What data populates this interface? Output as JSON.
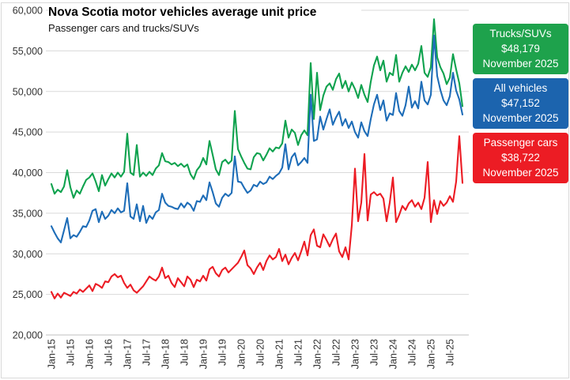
{
  "header": {
    "title": "Nova Scotia motor vehicles average unit price",
    "subtitle": "Passenger cars and trucks/SUVs"
  },
  "legend": [
    {
      "label": "Trucks/SUVs",
      "value": "$48,179",
      "date": "November 2025",
      "color": "#1ea24c"
    },
    {
      "label": "All vehicles",
      "value": "$47,152",
      "date": "November 2025",
      "color": "#1c64ae"
    },
    {
      "label": "Passenger cars",
      "value": "$38,722",
      "date": "November 2025",
      "color": "#ec1c24"
    }
  ],
  "chart_data": {
    "type": "line",
    "title": "Nova Scotia motor vehicles average unit price",
    "subtitle": "Passenger cars and trucks/SUVs",
    "x_unit": "month",
    "x_range": [
      "Jan-2015",
      "Nov-2025"
    ],
    "x_tick_labels": [
      "Jan-15",
      "Jul-15",
      "Jan-16",
      "Jul-16",
      "Jan-17",
      "Jul-17",
      "Jan-18",
      "Jul-18",
      "Jan-19",
      "Jul-19",
      "Jan-20",
      "Jul-20",
      "Jan-21",
      "Jul-21",
      "Jan-22",
      "Jul-22",
      "Jan-23",
      "Jul-23",
      "Jan-24",
      "Jul-24",
      "Jan-25",
      "Jul-25"
    ],
    "x_ticks_every_n_months": 6,
    "y_ticks": [
      20000,
      25000,
      30000,
      35000,
      40000,
      45000,
      50000,
      55000,
      60000
    ],
    "ylim": [
      20000,
      60000
    ],
    "grid": "horizontal",
    "legend_position": "right",
    "series": [
      {
        "name": "Trucks/SUVs",
        "color": "#0fa24e",
        "latest": {
          "label": "November 2025",
          "value": 48179
        },
        "values": [
          38600,
          37400,
          37900,
          37600,
          38300,
          40300,
          38200,
          36900,
          37800,
          37400,
          38300,
          39100,
          39400,
          39900,
          38900,
          37700,
          39700,
          38400,
          39200,
          39900,
          39400,
          40000,
          39500,
          40100,
          44800,
          40000,
          39700,
          43400,
          39500,
          40000,
          39600,
          40100,
          39700,
          40500,
          40900,
          42400,
          41400,
          41300,
          41000,
          41200,
          40800,
          41100,
          40700,
          41000,
          39800,
          39200,
          40300,
          40800,
          41800,
          41000,
          43900,
          42200,
          40400,
          39700,
          41300,
          41600,
          41100,
          41500,
          47600,
          42900,
          42000,
          41200,
          40500,
          40400,
          41900,
          42400,
          42300,
          41500,
          42200,
          43000,
          42600,
          43100,
          43000,
          43600,
          46400,
          44300,
          45300,
          44900,
          43400,
          44600,
          45200,
          44600,
          53500,
          46600,
          52300,
          47700,
          49500,
          50600,
          51000,
          50200,
          51500,
          52200,
          50400,
          51300,
          50000,
          51100,
          50300,
          49200,
          50800,
          49600,
          48700,
          51200,
          53200,
          54300,
          52600,
          53800,
          51200,
          52300,
          52000,
          54500,
          51200,
          52300,
          53100,
          52400,
          53300,
          52600,
          53400,
          55600,
          52300,
          51800,
          53000,
          58900,
          54200,
          53000,
          52200,
          50900,
          51700,
          54600,
          52700,
          51000,
          48179
        ]
      },
      {
        "name": "All vehicles",
        "color": "#1e6db8",
        "latest": {
          "label": "November 2025",
          "value": 47152
        },
        "values": [
          33400,
          32600,
          31900,
          31400,
          32900,
          34400,
          31900,
          32300,
          32100,
          32700,
          33400,
          33300,
          34100,
          35300,
          35500,
          33900,
          35200,
          34300,
          34700,
          35400,
          35000,
          35600,
          35100,
          35300,
          38700,
          34600,
          34300,
          36100,
          34000,
          35900,
          33800,
          34700,
          34300,
          35100,
          35400,
          37400,
          36300,
          35900,
          35800,
          35600,
          35500,
          36200,
          35700,
          36300,
          36000,
          35300,
          36500,
          36400,
          37200,
          36600,
          38800,
          37600,
          36200,
          35800,
          36900,
          37400,
          37100,
          37500,
          42000,
          38900,
          38800,
          38100,
          37500,
          37800,
          38500,
          38300,
          38900,
          38600,
          38800,
          39500,
          39200,
          39600,
          39900,
          40600,
          43500,
          40400,
          41900,
          42400,
          40900,
          41300,
          41800,
          41200,
          49600,
          43900,
          44100,
          46900,
          45300,
          46600,
          47800,
          45900,
          46800,
          47500,
          45800,
          46600,
          45500,
          46300,
          45000,
          44300,
          46200,
          45100,
          44500,
          46600,
          48400,
          49600,
          47700,
          48900,
          46400,
          47300,
          47100,
          49800,
          47600,
          47000,
          48300,
          50600,
          48000,
          48800,
          47900,
          51200,
          48900,
          48400,
          49600,
          56900,
          51900,
          50200,
          48900,
          48300,
          49400,
          52300,
          50100,
          49000,
          47152
        ]
      },
      {
        "name": "Passenger cars",
        "color": "#ec1c24",
        "latest": {
          "label": "November 2025",
          "value": 38722
        },
        "values": [
          25300,
          24500,
          25100,
          24600,
          25200,
          25000,
          24800,
          25300,
          25100,
          25600,
          25300,
          25700,
          26100,
          25400,
          26300,
          26100,
          25800,
          26600,
          26500,
          27200,
          27500,
          27100,
          27300,
          26400,
          25800,
          26200,
          25500,
          25200,
          25600,
          26000,
          26600,
          27200,
          26900,
          26700,
          27200,
          28300,
          27000,
          27300,
          26400,
          25900,
          27000,
          26500,
          26000,
          27200,
          26800,
          25900,
          26800,
          26600,
          27300,
          26700,
          28100,
          28400,
          27600,
          27200,
          28000,
          28300,
          27700,
          28100,
          28500,
          28900,
          29600,
          30400,
          28600,
          28200,
          27500,
          28300,
          28900,
          28000,
          29100,
          29800,
          29300,
          29600,
          30600,
          29100,
          29900,
          28700,
          29500,
          30100,
          29200,
          30300,
          31500,
          29800,
          32300,
          33000,
          31000,
          30800,
          32400,
          31700,
          30900,
          31800,
          32500,
          30300,
          29600,
          30800,
          29300,
          33500,
          40500,
          34000,
          36300,
          42300,
          34100,
          37300,
          37600,
          37200,
          37400,
          36800,
          34000,
          36300,
          39400,
          33900,
          34800,
          35900,
          35400,
          36200,
          36600,
          35800,
          36300,
          35500,
          36900,
          41300,
          33900,
          36600,
          34900,
          36500,
          35900,
          36300,
          37100,
          36400,
          38900,
          44500,
          38722
        ]
      }
    ]
  }
}
